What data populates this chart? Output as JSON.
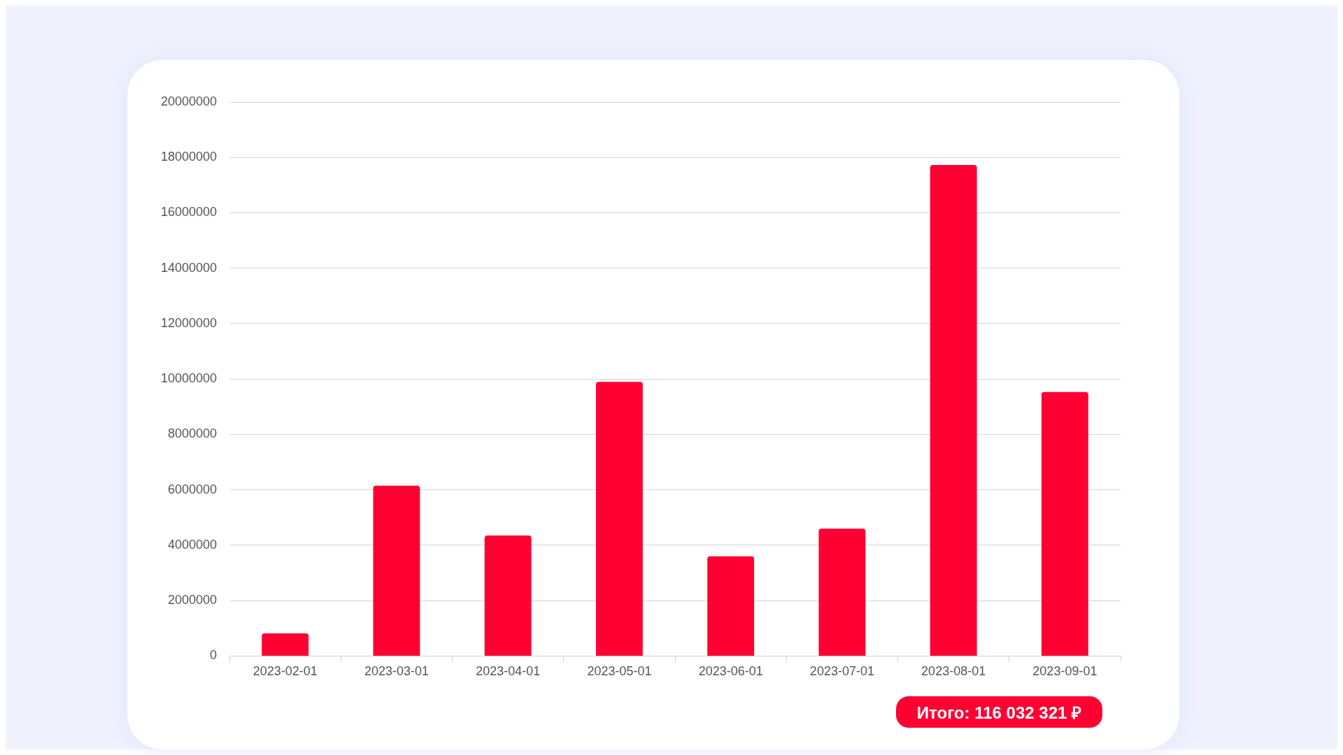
{
  "chart_data": {
    "type": "bar",
    "categories": [
      "2023-02-01",
      "2023-03-01",
      "2023-04-01",
      "2023-05-01",
      "2023-06-01",
      "2023-07-01",
      "2023-08-01",
      "2023-09-01"
    ],
    "values": [
      820000,
      6150000,
      4350000,
      9900000,
      3600000,
      4600000,
      17730000,
      9530000
    ],
    "color": "#ff0032",
    "ylim": [
      0,
      20000000
    ],
    "yticks": [
      0,
      2000000,
      4000000,
      6000000,
      8000000,
      10000000,
      12000000,
      14000000,
      16000000,
      18000000,
      20000000
    ],
    "grid": "y",
    "annotations": [
      "Итого: 116 032 321 ₽"
    ]
  }
}
